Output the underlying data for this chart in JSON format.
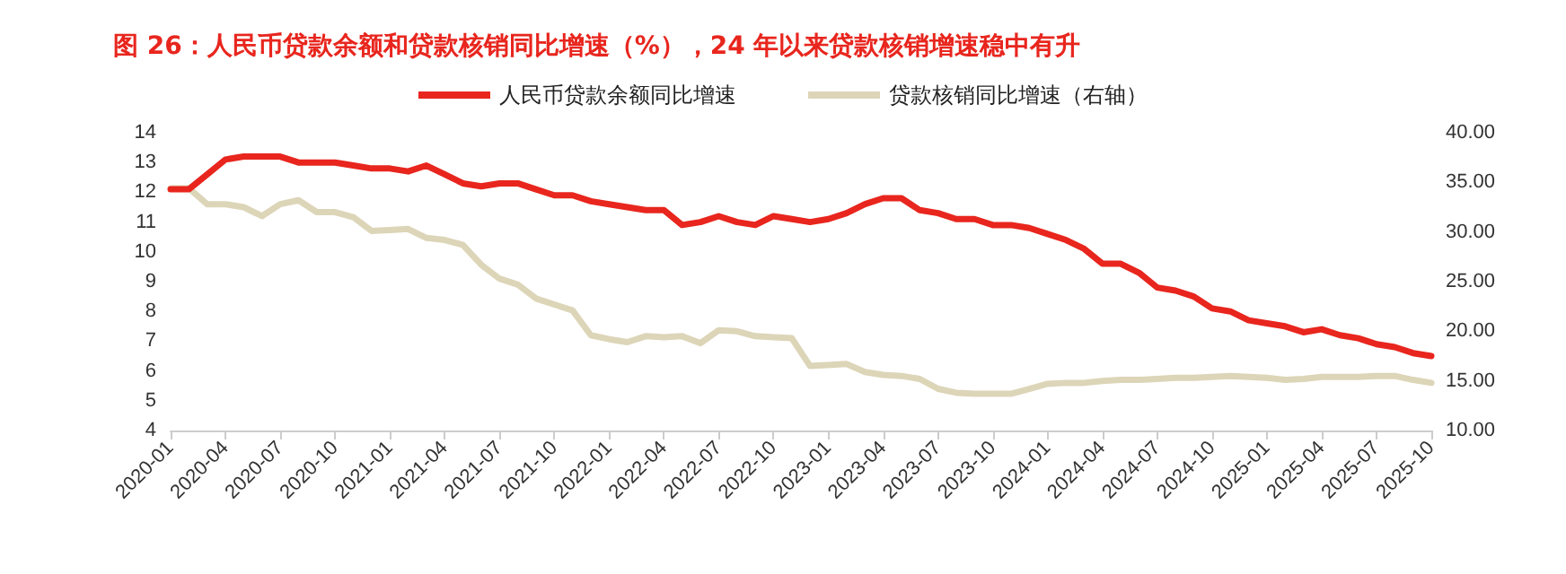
{
  "chart_data": {
    "type": "line",
    "title": "图 26：人民币贷款余额和贷款核销同比增速（%），24 年以来贷款核销增速稳中有升",
    "categories": [
      "2020-01",
      null,
      null,
      "2020-04",
      null,
      null,
      "2020-07",
      null,
      null,
      "2020-10",
      null,
      null,
      "2021-01",
      null,
      null,
      "2021-04",
      null,
      null,
      "2021-07",
      null,
      null,
      "2021-10",
      null,
      null,
      "2022-01",
      null,
      null,
      "2022-04",
      null,
      null,
      "2022-07",
      null,
      null,
      "2022-10",
      null,
      null,
      "2023-01",
      null,
      null,
      "2023-04",
      null,
      null,
      "2023-07",
      null,
      null,
      "2023-10",
      null,
      null,
      "2024-01",
      null,
      null,
      "2024-04",
      null,
      null,
      "2024-07",
      null,
      null,
      "2024-10",
      null,
      null,
      "2025-01",
      null,
      null,
      "2025-04",
      null,
      null,
      "2025-07",
      null,
      null,
      "2025-10"
    ],
    "series": [
      {
        "name": "人民币贷款余额同比增速",
        "color": "#e8261e",
        "values": [
          12.1,
          12.1,
          12.6,
          13.1,
          13.2,
          13.2,
          13.2,
          13.0,
          13.0,
          13.0,
          12.9,
          12.8,
          12.8,
          12.7,
          12.9,
          12.6,
          12.3,
          12.2,
          12.3,
          12.3,
          12.1,
          11.9,
          11.9,
          11.7,
          11.6,
          11.5,
          11.4,
          11.4,
          10.9,
          11.0,
          11.2,
          11.0,
          10.9,
          11.2,
          11.1,
          11.0,
          11.1,
          11.3,
          11.6,
          11.8,
          11.8,
          11.4,
          11.3,
          11.1,
          11.1,
          10.9,
          10.9,
          10.8,
          10.6,
          10.4,
          10.1,
          9.6,
          9.6,
          9.3,
          8.8,
          8.7,
          8.5,
          8.1,
          8.0,
          7.7,
          7.6,
          7.5,
          7.3,
          7.4,
          7.2,
          7.1,
          6.9,
          6.8,
          6.6,
          6.5
        ]
      },
      {
        "name": "贷款核销同比增速（右轴）",
        "color": "#ddd5b8",
        "axis": "y2",
        "values": [
          34.4,
          34.4,
          32.8,
          32.8,
          32.5,
          31.6,
          32.8,
          33.2,
          32.0,
          32.0,
          31.5,
          30.1,
          30.2,
          30.3,
          29.4,
          29.2,
          28.7,
          26.7,
          25.3,
          24.7,
          23.3,
          22.7,
          22.1,
          19.6,
          19.2,
          18.9,
          19.5,
          19.4,
          19.5,
          18.8,
          20.1,
          20.0,
          19.5,
          19.4,
          19.3,
          16.5,
          16.6,
          16.7,
          15.9,
          15.6,
          15.5,
          15.2,
          14.2,
          13.8,
          13.7,
          13.7,
          13.7,
          14.2,
          14.7,
          14.8,
          14.8,
          15.0,
          15.1,
          15.1,
          15.2,
          15.3,
          15.3,
          15.4,
          15.5,
          15.4,
          15.3,
          15.1,
          15.2,
          15.4,
          15.4,
          15.4,
          15.5,
          15.5,
          15.1,
          14.8
        ]
      }
    ],
    "ylim": [
      4,
      14
    ],
    "yticks": [
      4,
      5,
      6,
      7,
      8,
      9,
      10,
      11,
      12,
      13,
      14
    ],
    "y2lim": [
      10,
      40
    ],
    "y2ticks": [
      {
        "value": 10,
        "label": "10.00"
      },
      {
        "value": 15,
        "label": "15.00"
      },
      {
        "value": 20,
        "label": "20.00"
      },
      {
        "value": 25,
        "label": "25.00"
      },
      {
        "value": 30,
        "label": "30.00"
      },
      {
        "value": 35,
        "label": "35.00"
      },
      {
        "value": 40,
        "label": "40.00"
      }
    ],
    "legend": "top",
    "grid": false,
    "marker": "none",
    "line_style": "solid"
  }
}
